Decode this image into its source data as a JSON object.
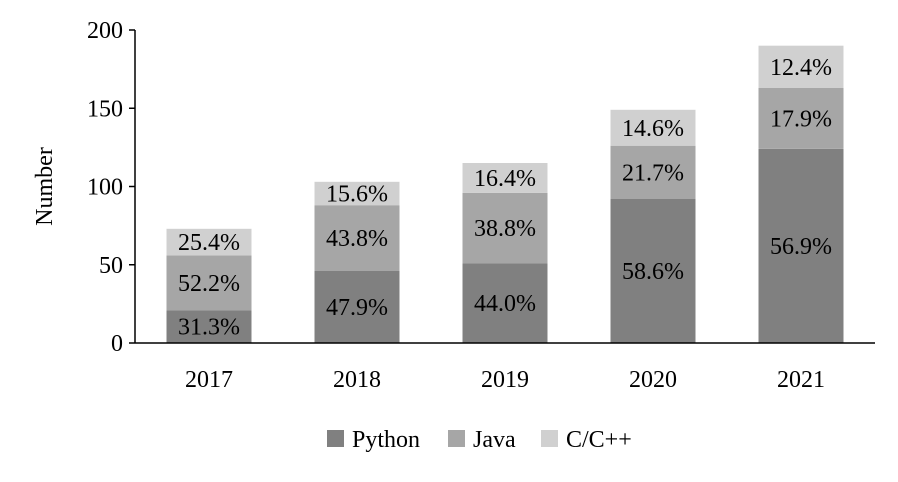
{
  "chart_data": {
    "type": "bar",
    "stacked": true,
    "title": "",
    "xlabel": "",
    "ylabel": "Number",
    "ylim": [
      0,
      200
    ],
    "yticks": [
      0,
      50,
      100,
      150,
      200
    ],
    "grid": false,
    "legend_position": "bottom",
    "categories": [
      "2017",
      "2018",
      "2019",
      "2020",
      "2021"
    ],
    "totals": [
      73,
      103,
      115,
      149,
      190
    ],
    "series": [
      {
        "name": "Python",
        "color": "#808080",
        "shares": [
          31.3,
          47.9,
          44.0,
          58.6,
          56.9
        ],
        "labels": [
          "31.3%",
          "47.9%",
          "44.0%",
          "58.6%",
          "56.9%"
        ]
      },
      {
        "name": "Java",
        "color": "#a6a6a6",
        "shares": [
          52.2,
          43.8,
          38.8,
          21.7,
          17.9
        ],
        "labels": [
          "52.2%",
          "43.8%",
          "38.8%",
          "21.7%",
          "17.9%"
        ]
      },
      {
        "name": "C/C++",
        "color": "#d0d0d0",
        "shares": [
          25.4,
          15.6,
          16.4,
          14.6,
          12.4
        ],
        "labels": [
          "25.4%",
          "15.6%",
          "16.4%",
          "14.6%",
          "12.4%"
        ]
      }
    ]
  }
}
